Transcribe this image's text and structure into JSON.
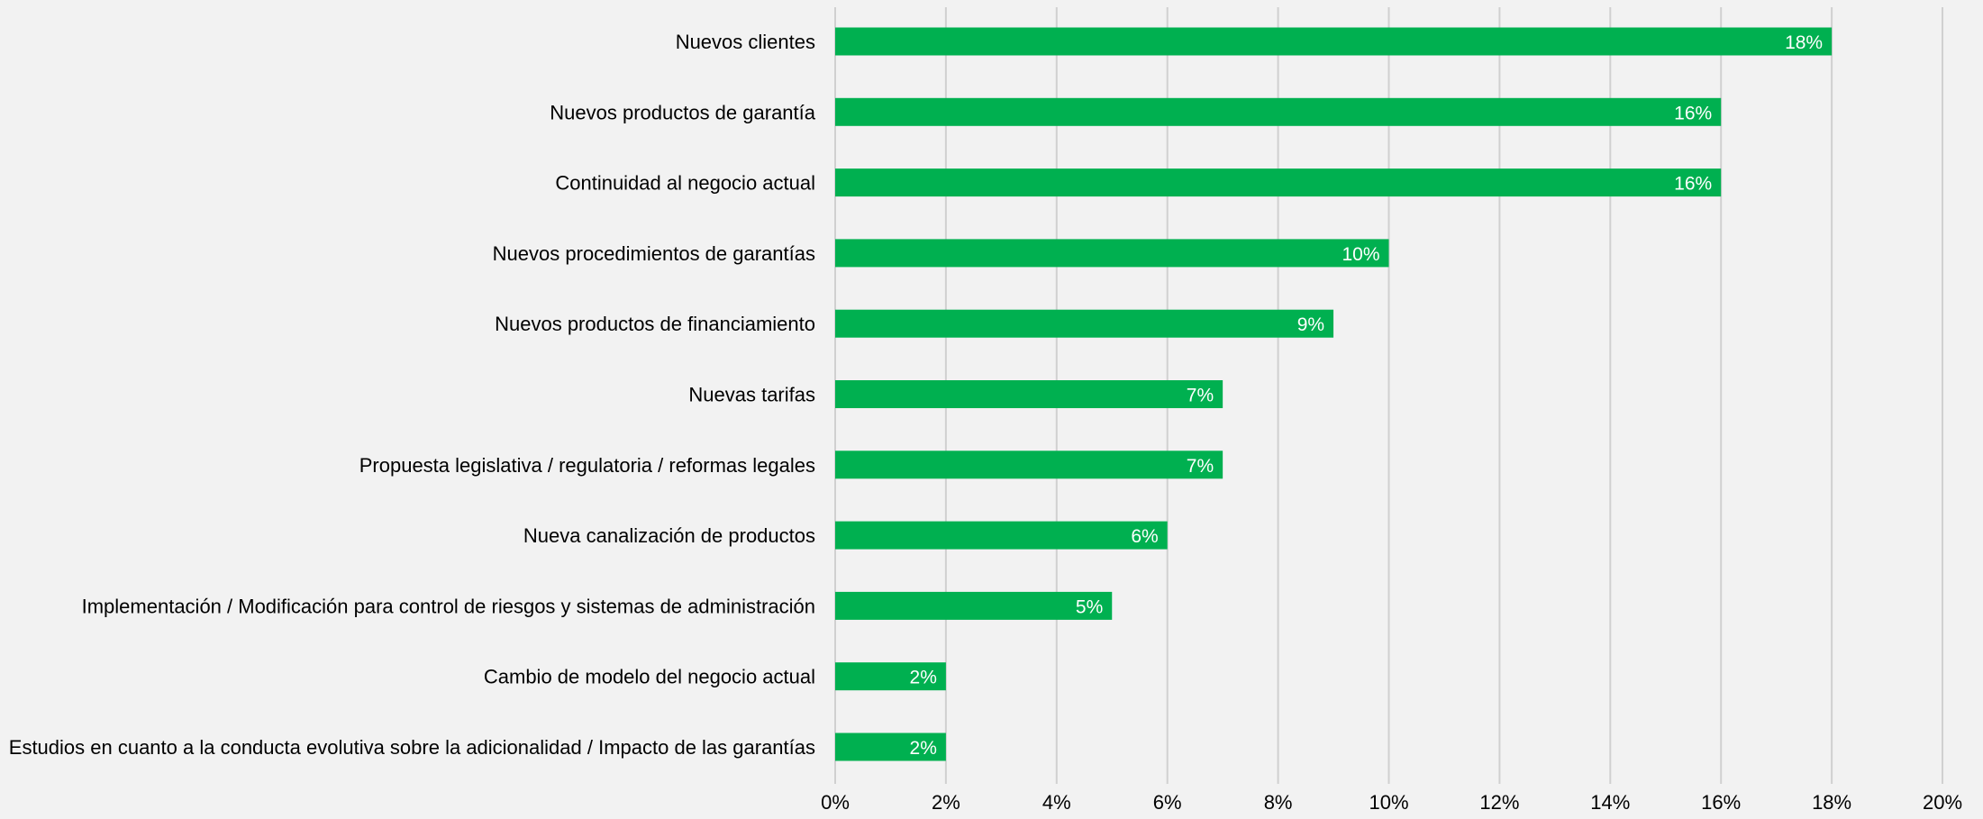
{
  "chart_data": {
    "type": "bar",
    "orientation": "horizontal",
    "categories": [
      "Nuevos clientes",
      "Nuevos productos de garantía",
      "Continuidad al negocio actual",
      "Nuevos procedimientos de garantías",
      "Nuevos productos de financiamiento",
      "Nuevas tarifas",
      "Propuesta legislativa / regulatoria / reformas legales",
      "Nueva canalización de productos",
      "Implementación / Modificación para control de riesgos y sistemas de administración",
      "Cambio de modelo del negocio actual",
      "Estudios en cuanto a la conducta evolutiva sobre la adicionalidad / Impacto de las garantías"
    ],
    "values": [
      18,
      16,
      16,
      10,
      9,
      7,
      7,
      6,
      5,
      2,
      2
    ],
    "data_labels": [
      "18%",
      "16%",
      "16%",
      "10%",
      "9%",
      "7%",
      "7%",
      "6%",
      "5%",
      "2%",
      "2%"
    ],
    "xlim": [
      0,
      20
    ],
    "ticks": [
      0,
      2,
      4,
      6,
      8,
      10,
      12,
      14,
      16,
      18,
      20
    ],
    "tick_labels": [
      "0%",
      "2%",
      "4%",
      "6%",
      "8%",
      "10%",
      "12%",
      "14%",
      "16%",
      "18%",
      "20%"
    ],
    "grid": true,
    "legend": "none",
    "bar_color": "#00b050",
    "grid_color": "#d0d0d0",
    "background": "#f2f2f2"
  }
}
